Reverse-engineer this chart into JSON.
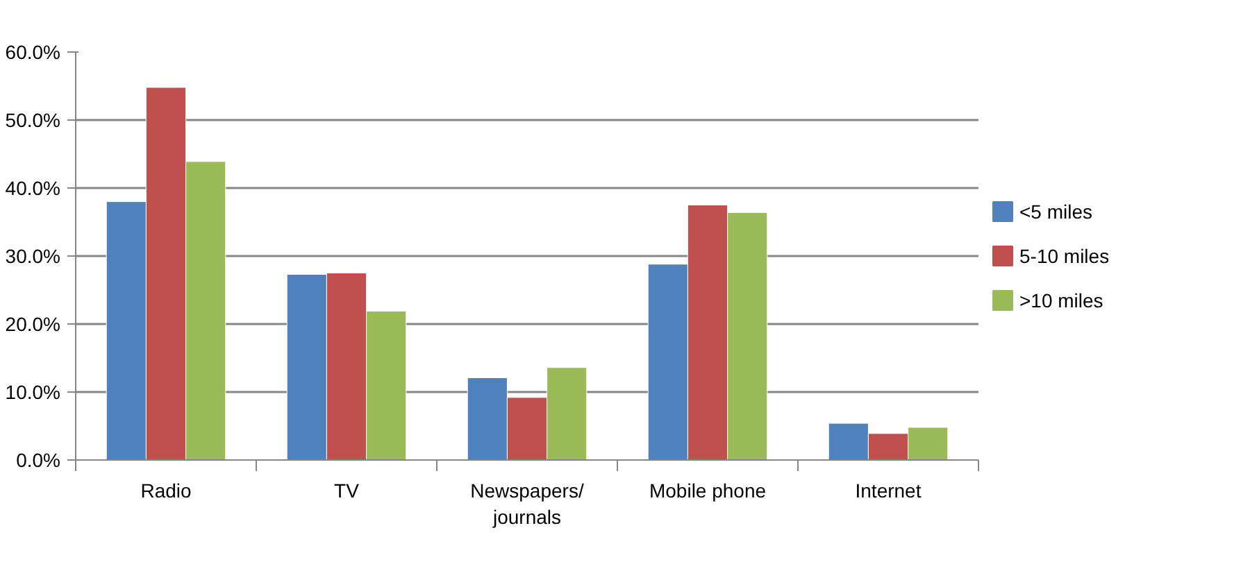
{
  "chart_data": {
    "type": "bar",
    "categories": [
      "Radio",
      "TV",
      "Newspapers/\njournals",
      "Mobile phone",
      "Internet"
    ],
    "series": [
      {
        "name": "<5 miles",
        "color": "#4f81bd",
        "values": [
          38.0,
          27.3,
          12.1,
          28.8,
          5.4
        ]
      },
      {
        "name": "5-10 miles",
        "color": "#c0504d",
        "values": [
          54.8,
          27.5,
          9.2,
          37.5,
          3.9
        ]
      },
      {
        "name": ">10 miles",
        "color": "#9bbb59",
        "values": [
          43.9,
          21.9,
          13.6,
          36.4,
          4.8
        ]
      }
    ],
    "ylim": [
      0,
      60
    ],
    "yticks": [
      {
        "value": 0,
        "label": "0.0%"
      },
      {
        "value": 10,
        "label": "10.0%"
      },
      {
        "value": 20,
        "label": "20.0%"
      },
      {
        "value": 30,
        "label": "30.0%"
      },
      {
        "value": 40,
        "label": "40.0%"
      },
      {
        "value": 50,
        "label": "50.0%"
      },
      {
        "value": 60,
        "label": "60.0%"
      }
    ],
    "grid": "y",
    "legend": "right"
  }
}
